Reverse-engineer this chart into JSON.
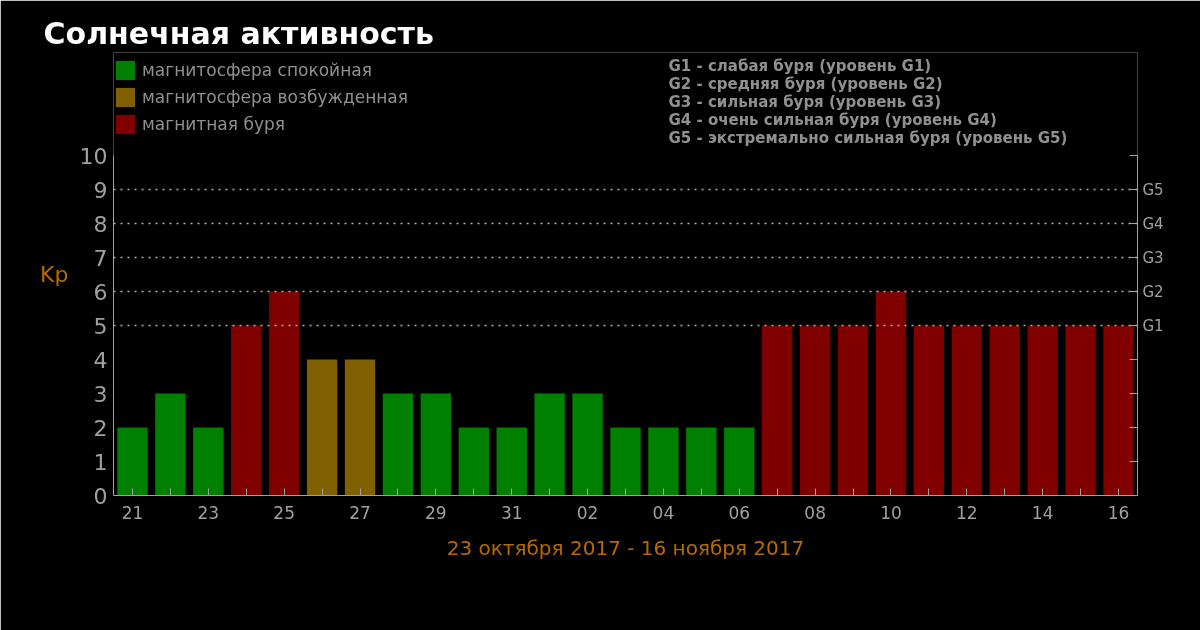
{
  "chart_data": {
    "type": "bar",
    "title": "Солнечная активность",
    "xlabel": "23 октября 2017 - 16 ноября 2017",
    "ylabel": "Kp",
    "categories": [
      "21",
      null,
      "23",
      null,
      "25",
      null,
      "27",
      null,
      "29",
      null,
      "31",
      null,
      "02",
      null,
      "04",
      null,
      "06",
      null,
      "08",
      null,
      "10",
      null,
      "12",
      null,
      "14",
      null,
      "16"
    ],
    "series": [
      {
        "name": "магнитосфера спокойная",
        "color": "#008000",
        "values": [
          2,
          3,
          2,
          null,
          null,
          null,
          null,
          3,
          3,
          2,
          2,
          3,
          3,
          2,
          2,
          2,
          2,
          null,
          null,
          null,
          null,
          null,
          null,
          null,
          null,
          null,
          null
        ]
      },
      {
        "name": "магнитосфера возбужденная",
        "color": "#806000",
        "values": [
          null,
          null,
          null,
          null,
          null,
          4,
          4,
          null,
          null,
          null,
          null,
          null,
          null,
          null,
          null,
          null,
          null,
          null,
          null,
          null,
          null,
          null,
          null,
          null,
          null,
          null,
          null
        ]
      },
      {
        "name": "магнитная буря",
        "color": "#800000",
        "values": [
          null,
          null,
          null,
          5,
          6,
          null,
          null,
          null,
          null,
          null,
          null,
          null,
          null,
          null,
          null,
          null,
          null,
          5,
          5,
          5,
          6,
          5,
          5,
          5,
          5,
          5,
          5
        ]
      }
    ],
    "ylim": [
      0,
      10
    ],
    "yticks": [
      0,
      1,
      2,
      3,
      4,
      5,
      6,
      7,
      8,
      9,
      10
    ],
    "ref_lines": [
      {
        "axis": "y",
        "value": 5,
        "label": "G1",
        "color": "#b0b0b0",
        "line_style": "dotted"
      },
      {
        "axis": "y",
        "value": 6,
        "label": "G2",
        "color": "#b0b0b0",
        "line_style": "dotted"
      },
      {
        "axis": "y",
        "value": 7,
        "label": "G3",
        "color": "#b0b0b0",
        "line_style": "dotted"
      },
      {
        "axis": "y",
        "value": 8,
        "label": "G4",
        "color": "#b0b0b0",
        "line_style": "dotted"
      },
      {
        "axis": "y",
        "value": 9,
        "label": "G5",
        "color": "#b0b0b0",
        "line_style": "dotted"
      }
    ],
    "annotations": [
      "G1 - слабая буря (уровень G1)",
      "G2 - средняя буря (уровень G2)",
      "G3 - сильная буря (уровень G3)",
      "G4 - очень сильная буря (уровень G4)",
      "G5 - экстремально сильная буря (уровень G5)"
    ],
    "legend": "top left"
  }
}
